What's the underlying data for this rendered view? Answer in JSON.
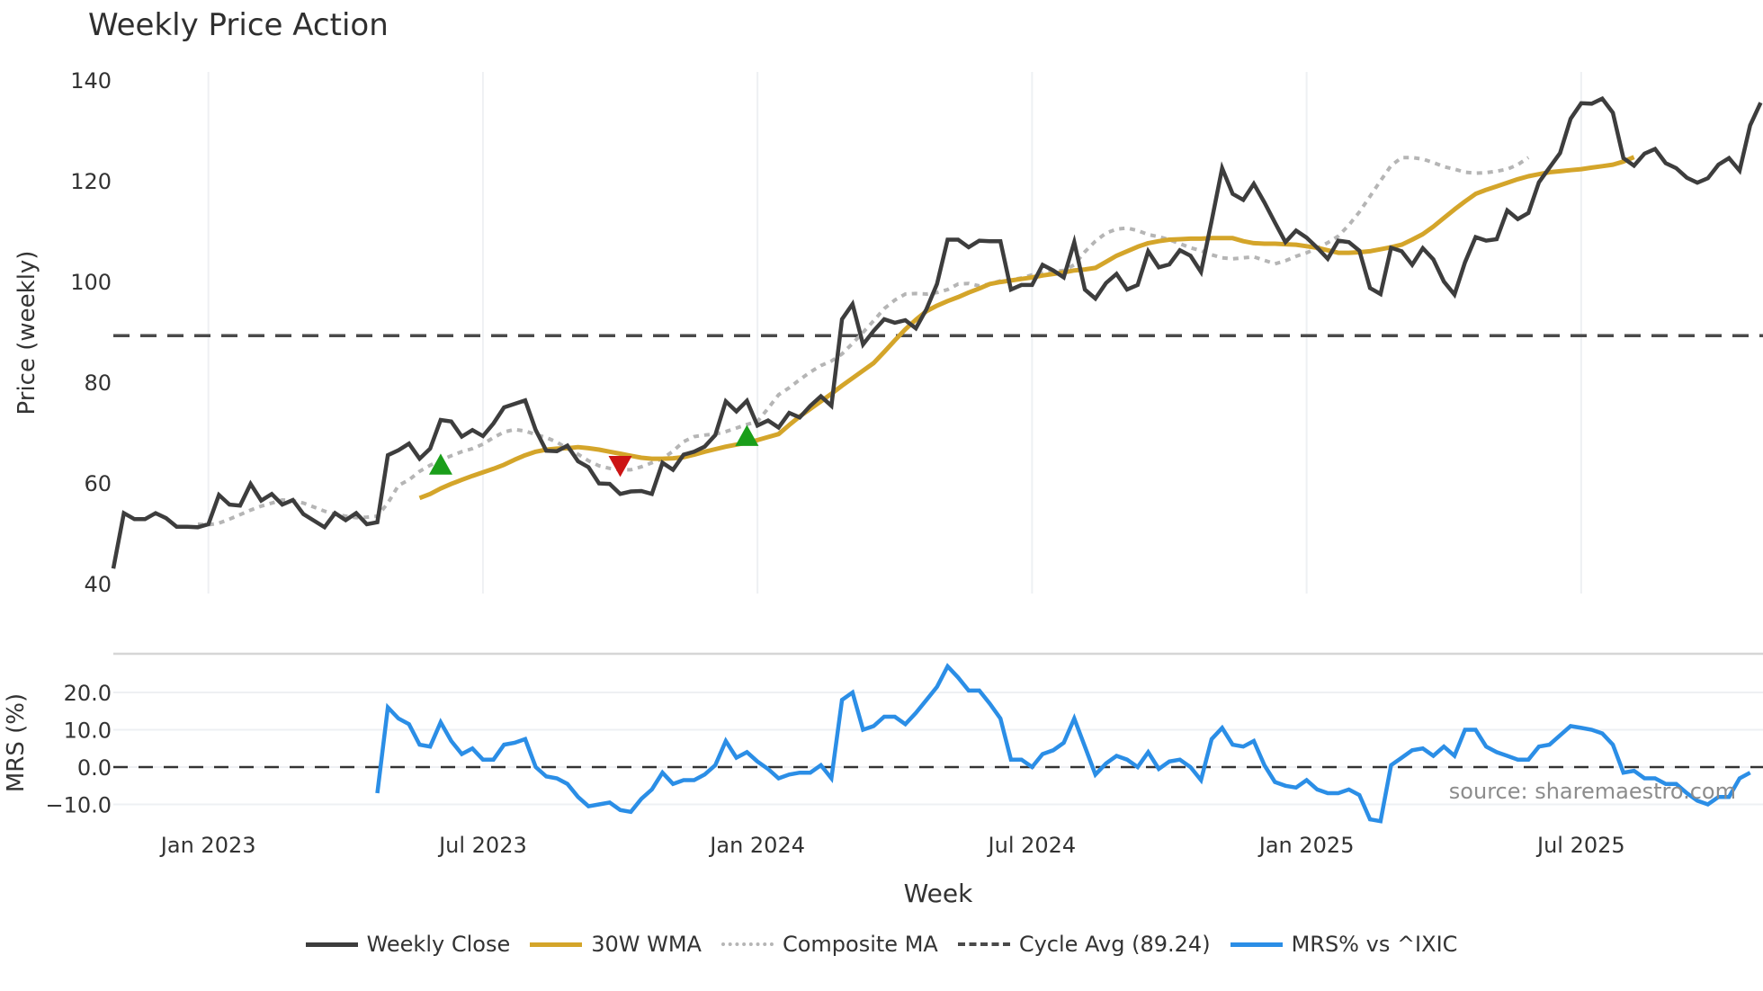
{
  "title": "Weekly Price Action",
  "source_note": "source: sharemaestro.com",
  "colors": {
    "weekly_close": "#3d3d3d",
    "wma30": "#d4a52a",
    "composite_ma": "#b5b5b5",
    "cycle_avg": "#4a4a4a",
    "mrs": "#2b8ee6",
    "buy_marker": "#1a9e1a",
    "sell_marker": "#cc1414",
    "grid": "#eef0f3"
  },
  "legend": [
    {
      "label": "Weekly Close",
      "style": "solid",
      "color": "#3d3d3d"
    },
    {
      "label": "30W WMA",
      "style": "solid",
      "color": "#d4a52a"
    },
    {
      "label": "Composite MA",
      "style": "dotted",
      "color": "#b5b5b5"
    },
    {
      "label": "Cycle Avg (89.24)",
      "style": "dashed",
      "color": "#4a4a4a"
    },
    {
      "label": "MRS% vs ^IXIC",
      "style": "solid",
      "color": "#2b8ee6"
    }
  ],
  "chart_data": [
    {
      "type": "line",
      "title": "Weekly Price Action",
      "xlabel": "Week",
      "ylabel": "Price (weekly)",
      "ylim": [
        40,
        140
      ],
      "yticks": [
        40,
        60,
        80,
        100,
        120,
        140
      ],
      "xticks": [
        "Jan 2023",
        "Jul 2023",
        "Jan 2024",
        "Jul 2024",
        "Jan 2025",
        "Jul 2025"
      ],
      "xtick_week_index": [
        9,
        35,
        61,
        87,
        113,
        139
      ],
      "grid": "vertical",
      "x_start_week_index": 0,
      "x_end_week_index": 156,
      "horizontal_line": {
        "name": "Cycle Avg",
        "value": 89.24,
        "style": "dashed"
      },
      "series": [
        {
          "name": "Weekly Close",
          "start_index": 0,
          "values": [
            43,
            54,
            52.8,
            52.8,
            54,
            53,
            51.3,
            51.3,
            51.2,
            51.8,
            57.6,
            55.7,
            55.5,
            59.8,
            56.5,
            57.8,
            55.7,
            56.6,
            53.8,
            52.5,
            51.2,
            54,
            52.6,
            54,
            51.8,
            52.2,
            65.5,
            66.5,
            67.8,
            64.8,
            66.8,
            72.5,
            72.2,
            69.2,
            70.5,
            69.3,
            71.8,
            75,
            75.7,
            76.4,
            70.5,
            66.4,
            66.3,
            67.4,
            64.3,
            63.1,
            59.9,
            59.8,
            57.8,
            58.3,
            58.4,
            57.8,
            64,
            62.6,
            65.6,
            66.2,
            67.2,
            69.5,
            76.2,
            74.2,
            76.3,
            71.4,
            72.4,
            71,
            73.9,
            73,
            75.3,
            77.2,
            75.3,
            92.5,
            95.5,
            87.5,
            90.2,
            92.5,
            91.8,
            92.3,
            90.7,
            94.5,
            99.5,
            108.3,
            108.3,
            106.8,
            108.1,
            108,
            108,
            98.4,
            99.3,
            99.3,
            103.3,
            102.2,
            100.8,
            107.8,
            98.4,
            96.6,
            99.7,
            101.5,
            98.4,
            99.3,
            106,
            102.8,
            103.4,
            106.2,
            105.1,
            101.9,
            112,
            122.5,
            117.4,
            116.2,
            119.4,
            115.7,
            111.7,
            107.8,
            110.1,
            108.7,
            106.7,
            104.5,
            108.1,
            107.8,
            106.1,
            98.7,
            97.5,
            106.7,
            106,
            103.3,
            106.6,
            104.4,
            100,
            97.4,
            103.8,
            108.8,
            108.1,
            108.4,
            114.1,
            112.4,
            113.6,
            119.7,
            122.6,
            125.5,
            132.3,
            135.4,
            135.3,
            136.3,
            133.5,
            124.5,
            123,
            125.4,
            126.3,
            123.5,
            122.5,
            120.6,
            119.6,
            120.5,
            123.2,
            124.5,
            122,
            131,
            135.5
          ]
        },
        {
          "name": "30W WMA",
          "start_index": 29,
          "values": [
            57,
            57.8,
            58.9,
            59.8,
            60.6,
            61.4,
            62.1,
            62.8,
            63.6,
            64.6,
            65.5,
            66.2,
            66.6,
            66.8,
            66.9,
            67.1,
            66.9,
            66.6,
            66.2,
            65.8,
            65.4,
            65,
            64.8,
            64.8,
            64.9,
            65.1,
            65.6,
            66.2,
            66.7,
            67.2,
            67.6,
            68,
            68.5,
            69.1,
            69.7,
            71.5,
            73.2,
            74.7,
            76.2,
            77.7,
            79.3,
            80.8,
            82.3,
            83.8,
            86,
            88.3,
            90.5,
            92.4,
            94.1,
            95.2,
            96.1,
            96.9,
            97.8,
            98.6,
            99.5,
            99.9,
            100.2,
            100.5,
            100.8,
            101.2,
            101.5,
            101.8,
            102.2,
            102.4,
            102.7,
            103.9,
            105.1,
            106,
            106.9,
            107.6,
            108,
            108.3,
            108.4,
            108.5,
            108.5,
            108.6,
            108.6,
            108.6,
            108,
            107.6,
            107.5,
            107.5,
            107.4,
            107.3,
            107,
            106.7,
            106.2,
            105.7,
            105.7,
            105.8,
            106,
            106.4,
            106.8,
            107.3,
            108.3,
            109.4,
            110.9,
            112.6,
            114.3,
            115.9,
            117.4,
            118.2,
            118.9,
            119.6,
            120.3,
            120.9,
            121.3,
            121.7,
            121.9,
            122.1,
            122.3,
            122.6,
            122.9,
            123.2,
            123.8,
            124.7
          ]
        },
        {
          "name": "Composite MA",
          "start_index": 8,
          "values": [
            51.8,
            51.7,
            52,
            52.8,
            53.7,
            54.6,
            55.4,
            56,
            56.6,
            56.5,
            56,
            55.2,
            54.4,
            53.8,
            53.4,
            53.1,
            53.2,
            53.4,
            56,
            59.5,
            60.6,
            62.3,
            63.5,
            64.5,
            65.4,
            66.2,
            66.8,
            67.7,
            69,
            70.1,
            70.6,
            70.3,
            69.6,
            69,
            68.1,
            66.8,
            65.7,
            64.4,
            63.4,
            62.9,
            62.6,
            62.6,
            63.2,
            64,
            64.8,
            66.3,
            68.2,
            69.2,
            69.5,
            69.7,
            70.2,
            70.9,
            71.6,
            72.2,
            74.8,
            77.5,
            78.9,
            80.5,
            82,
            83.3,
            84.2,
            85.6,
            87.7,
            89.9,
            92.2,
            94.6,
            96.3,
            97.5,
            97.6,
            97.5,
            97.8,
            98.4,
            99.5,
            99.6,
            99.1,
            99.5,
            100.1,
            100.3,
            100.7,
            101.3,
            101.7,
            102,
            102.2,
            103.3,
            105.9,
            108,
            109.6,
            110.4,
            110.6,
            110.1,
            109.3,
            108.9,
            108.3,
            107.5,
            106.7,
            106.1,
            105.3,
            104.7,
            104.5,
            104.7,
            104.9,
            104.2,
            103.5,
            104.1,
            105,
            105.7,
            106.6,
            107.7,
            109,
            111.2,
            113.8,
            116.9,
            120,
            123,
            124.6,
            124.6,
            124.3,
            123.6,
            122.8,
            122.3,
            121.7,
            121.5,
            121.6,
            121.9,
            122.3,
            123.2,
            124.6
          ]
        }
      ],
      "markers": [
        {
          "type": "buy",
          "shape": "triangle-up",
          "week_index": 31,
          "value": 63.5
        },
        {
          "type": "sell",
          "shape": "triangle-down",
          "week_index": 48,
          "value": 63.5
        },
        {
          "type": "buy",
          "shape": "triangle-up",
          "week_index": 60,
          "value": 69.2
        }
      ]
    },
    {
      "type": "line",
      "title": "",
      "xlabel": "Week",
      "ylabel": "MRS (%)",
      "ylim": [
        -14,
        28
      ],
      "yticks": [
        -10.0,
        0.0,
        10.0,
        20.0
      ],
      "ytick_labels": [
        "−10.0",
        "0.0",
        "10.0",
        "20.0"
      ],
      "horizontal_line": {
        "name": "Zero",
        "value": 0,
        "style": "dashed"
      },
      "series": [
        {
          "name": "MRS% vs ^IXIC",
          "start_index": 25,
          "values": [
            -7,
            16,
            13,
            11.5,
            6,
            5.5,
            12,
            7,
            3.5,
            5,
            2,
            2,
            6,
            6.5,
            7.5,
            0,
            -2.5,
            -3,
            -4.5,
            -8,
            -10.5,
            -10,
            -9.5,
            -11.5,
            -12,
            -8.5,
            -6,
            -1.5,
            -4.5,
            -3.5,
            -3.5,
            -2,
            0.5,
            7,
            2.5,
            4,
            1.5,
            -0.5,
            -3,
            -2,
            -1.5,
            -1.5,
            0.5,
            -3,
            18,
            20,
            10,
            11,
            13.5,
            13.5,
            11.5,
            14.5,
            18,
            21.5,
            27,
            24,
            20.5,
            20.5,
            17,
            13,
            2,
            2,
            0,
            3.5,
            4.5,
            6.5,
            13,
            5.5,
            -2,
            1,
            3,
            2,
            0,
            4,
            -0.5,
            1.5,
            2,
            0,
            -3.5,
            7.5,
            10.5,
            6,
            5.5,
            7,
            0.5,
            -4,
            -5,
            -5.5,
            -3.5,
            -6,
            -7,
            -7,
            -6,
            -7.5,
            -14,
            -14.5,
            0.5,
            2.5,
            4.5,
            5,
            3,
            5.5,
            3,
            10,
            10,
            5.5,
            4,
            3,
            2,
            2,
            5.5,
            6,
            8.5,
            11,
            10.5,
            10,
            9,
            6,
            -1.5,
            -1,
            -3,
            -3,
            -4.5,
            -4.5,
            -7,
            -9,
            -10,
            -8,
            -8,
            -3,
            -1.5
          ]
        }
      ]
    }
  ],
  "axes": {
    "price_yticks": [
      "40",
      "60",
      "80",
      "100",
      "120",
      "140"
    ],
    "mrs_yticks": [
      "−10.0",
      "0.0",
      "10.0",
      "20.0"
    ],
    "xticks": [
      "Jan 2023",
      "Jul 2023",
      "Jan 2024",
      "Jul 2024",
      "Jan 2025",
      "Jul 2025"
    ],
    "price_ylabel": "Price (weekly)",
    "mrs_ylabel": "MRS (%)",
    "xlabel": "Week"
  }
}
